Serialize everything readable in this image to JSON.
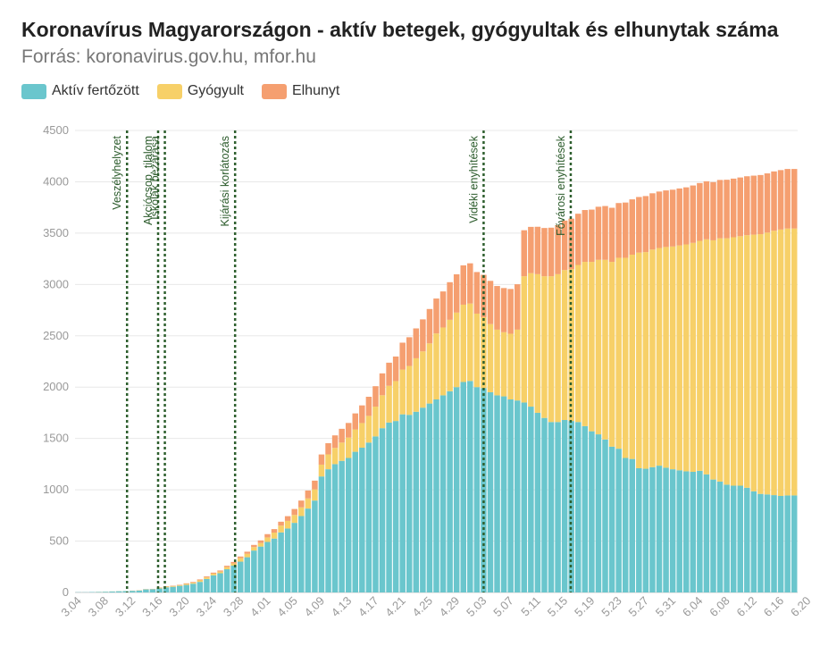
{
  "header": {
    "title": "Koronavírus Magyarországon - aktív betegek, gyógyultak és elhunytak száma",
    "subtitle": "Forrás: koronavirus.gov.hu, mfor.hu"
  },
  "legend": [
    {
      "label": "Aktív fertőzött",
      "color": "#6ac6cd"
    },
    {
      "label": "Gyógyult",
      "color": "#f7d068"
    },
    {
      "label": "Elhunyt",
      "color": "#f59f70"
    }
  ],
  "chart_data": {
    "type": "bar",
    "stacked": true,
    "ylim": [
      0,
      4500
    ],
    "yticks": [
      0,
      500,
      1000,
      1500,
      2000,
      2500,
      3000,
      3500,
      4000,
      4500
    ],
    "xticks": [
      "3.04",
      "3.08",
      "3.12",
      "3.16",
      "3.20",
      "3.24",
      "3.28",
      "4.01",
      "4.05",
      "4.09",
      "4.13",
      "4.17",
      "4.21",
      "4.25",
      "4.29",
      "5.03",
      "5.07",
      "5.11",
      "5.15",
      "5.19",
      "5.23",
      "5.27",
      "5.31",
      "6.04",
      "6.08",
      "6.12",
      "6.16",
      "6.20"
    ],
    "start_date": "03.04",
    "grid": true,
    "series": [
      {
        "name": "Aktív fertőzött",
        "color": "#6ac6cd",
        "values": [
          2,
          2,
          4,
          5,
          7,
          9,
          12,
          13,
          16,
          19,
          30,
          32,
          39,
          50,
          55,
          64,
          73,
          85,
          103,
          131,
          167,
          187,
          226,
          261,
          300,
          343,
          408,
          447,
          492,
          525,
          585,
          623,
          678,
          744,
          817,
          895,
          1130,
          1200,
          1250,
          1282,
          1310,
          1370,
          1410,
          1460,
          1520,
          1600,
          1655,
          1670,
          1735,
          1730,
          1760,
          1800,
          1840,
          1880,
          1920,
          1960,
          2000,
          2050,
          2060,
          2000,
          1990,
          1950,
          1920,
          1910,
          1880,
          1870,
          1850,
          1810,
          1750,
          1700,
          1660,
          1660,
          1680,
          1670,
          1660,
          1620,
          1570,
          1540,
          1490,
          1420,
          1400,
          1310,
          1300,
          1210,
          1205,
          1220,
          1235,
          1215,
          1200,
          1190,
          1180,
          1175,
          1185,
          1150,
          1100,
          1080,
          1050,
          1040,
          1040,
          1020,
          985,
          960,
          955,
          948,
          940,
          945,
          945
        ]
      },
      {
        "name": "Gyógyult",
        "color": "#f7d068",
        "values": [
          0,
          0,
          0,
          1,
          1,
          1,
          1,
          1,
          1,
          2,
          2,
          2,
          7,
          7,
          7,
          7,
          10,
          10,
          15,
          16,
          16,
          16,
          21,
          21,
          34,
          34,
          34,
          34,
          44,
          58,
          66,
          74,
          77,
          85,
          99,
          109,
          115,
          145,
          158,
          178,
          199,
          218,
          240,
          260,
          290,
          321,
          358,
          389,
          436,
          476,
          521,
          548,
          586,
          643,
          661,
          696,
          726,
          753,
          754,
          716,
          691,
          664,
          640,
          625,
          640,
          690,
          1230,
          1300,
          1350,
          1380,
          1420,
          1440,
          1460,
          1480,
          1530,
          1600,
          1650,
          1700,
          1750,
          1800,
          1860,
          1950,
          1990,
          2100,
          2110,
          2120,
          2120,
          2150,
          2170,
          2190,
          2210,
          2230,
          2240,
          2290,
          2330,
          2370,
          2400,
          2420,
          2430,
          2460,
          2500,
          2530,
          2550,
          2575,
          2595,
          2600,
          2600
        ]
      },
      {
        "name": "Elhunyt",
        "color": "#f59f70",
        "values": [
          0,
          0,
          0,
          0,
          0,
          0,
          0,
          0,
          1,
          1,
          1,
          1,
          3,
          4,
          4,
          4,
          6,
          7,
          9,
          9,
          10,
          11,
          13,
          15,
          16,
          20,
          21,
          26,
          32,
          34,
          38,
          46,
          58,
          66,
          77,
          85,
          99,
          109,
          122,
          134,
          142,
          156,
          172,
          186,
          199,
          213,
          225,
          239,
          262,
          280,
          291,
          312,
          335,
          340,
          351,
          366,
          373,
          383,
          392,
          405,
          413,
          421,
          425,
          430,
          436,
          442,
          448,
          451,
          462,
          470,
          473,
          478,
          482,
          491,
          499,
          505,
          509,
          517,
          524,
          527,
          533,
          538,
          539,
          542,
          546,
          548,
          550,
          551,
          553,
          555,
          556,
          559,
          563,
          565,
          567,
          568,
          570,
          571,
          572,
          574,
          575,
          576,
          577,
          578,
          579,
          580,
          580
        ]
      }
    ],
    "annotations": [
      {
        "label": "Veszélyhelyzet",
        "index": 7.7
      },
      {
        "label": "Akciócsop. tilalom",
        "index": 12.3
      },
      {
        "label": "Iskolák bezárása",
        "index": 13.3
      },
      {
        "label": "Kijárási korlátozás",
        "index": 23.7
      },
      {
        "label": "Vidéki enyhítések",
        "index": 60.5
      },
      {
        "label": "Fővárosi enyhítések",
        "index": 73.4
      }
    ]
  }
}
